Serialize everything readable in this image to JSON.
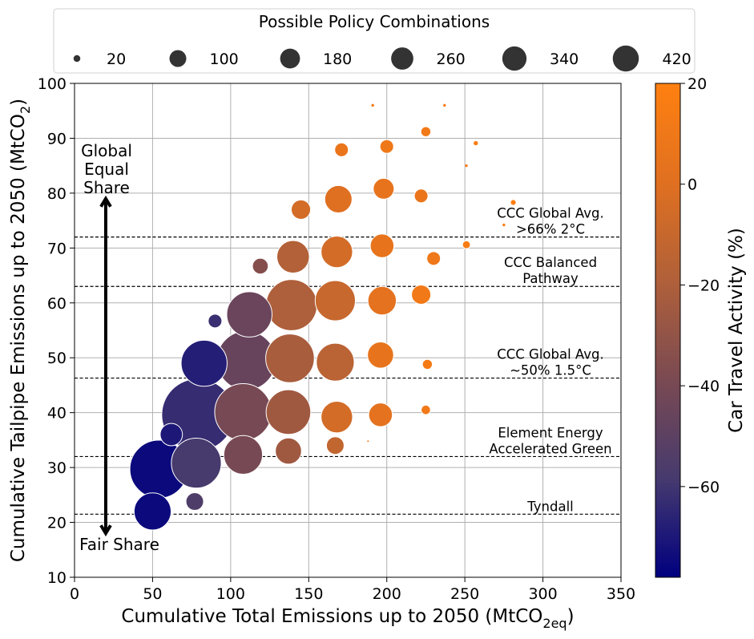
{
  "chart_data": {
    "type": "scatter",
    "xlabel": "Cumulative Total Emissions up to 2050 (MtCO",
    "xlabel_sub": "2eq",
    "xlabel_end": ")",
    "ylabel": "Cumulative Tailpipe Emissions up to 2050 (MtCO",
    "ylabel_sub": "2",
    "ylabel_end": ")",
    "xlim": [
      0,
      350
    ],
    "ylim": [
      10,
      100
    ],
    "xticks": [
      0,
      50,
      100,
      150,
      200,
      250,
      300,
      350
    ],
    "yticks": [
      10,
      20,
      30,
      40,
      50,
      60,
      70,
      80,
      90,
      100
    ],
    "grid": true,
    "size_legend": {
      "title": "Possible Policy Combinations",
      "placement": "top",
      "values": [
        20,
        100,
        180,
        260,
        340,
        420
      ]
    },
    "colorbar": {
      "label": "Car Travel Activity (%)",
      "range": [
        -78,
        20
      ],
      "ticks": [
        20,
        0,
        -20,
        -40,
        -60
      ],
      "tick_labels": [
        "20",
        "0",
        "−20",
        "−40",
        "−60"
      ],
      "colors": [
        "#00007f",
        "#463a6e",
        "#7a4a52",
        "#b0603a",
        "#e07020",
        "#ff8010"
      ]
    },
    "reference_lines": [
      {
        "y": 72,
        "label_lines": [
          "CCC Global Avg.",
          ">66% 2°C"
        ]
      },
      {
        "y": 63,
        "label_lines": [
          "CCC Balanced",
          "Pathway"
        ]
      },
      {
        "y": 46.3,
        "label_lines": [
          "CCC Global Avg.",
          "~50% 1.5°C"
        ]
      },
      {
        "y": 32,
        "label_lines": [
          "Element Energy",
          "Accelerated Green"
        ]
      },
      {
        "y": 21.5,
        "label_lines": [
          "Tyndall"
        ]
      }
    ],
    "arrow": {
      "x": 20,
      "y_from": 18,
      "y_to": 79,
      "top_label_lines": [
        "Global",
        "Equal",
        "Share"
      ],
      "bottom_label": "Fair Share"
    },
    "points": [
      {
        "x": 50,
        "y": 22,
        "size": 110,
        "color": -75
      },
      {
        "x": 54,
        "y": 29.7,
        "size": 270,
        "color": -75
      },
      {
        "x": 62,
        "y": 36,
        "size": 40,
        "color": -70
      },
      {
        "x": 77,
        "y": 23.8,
        "size": 25,
        "color": -55
      },
      {
        "x": 78,
        "y": 30.8,
        "size": 200,
        "color": -58
      },
      {
        "x": 79,
        "y": 39.6,
        "size": 420,
        "color": -63
      },
      {
        "x": 83,
        "y": 49,
        "size": 170,
        "color": -68
      },
      {
        "x": 90,
        "y": 56.7,
        "size": 15,
        "color": -62
      },
      {
        "x": 108,
        "y": 32.3,
        "size": 120,
        "color": -40
      },
      {
        "x": 108,
        "y": 40.1,
        "size": 260,
        "color": -40
      },
      {
        "x": 110,
        "y": 49.5,
        "size": 280,
        "color": -46
      },
      {
        "x": 112,
        "y": 57.9,
        "size": 165,
        "color": -45
      },
      {
        "x": 119,
        "y": 66.7,
        "size": 20,
        "color": -35
      },
      {
        "x": 137,
        "y": 33,
        "size": 55,
        "color": -25
      },
      {
        "x": 137,
        "y": 40.1,
        "size": 160,
        "color": -25
      },
      {
        "x": 138,
        "y": 49.9,
        "size": 190,
        "color": -22
      },
      {
        "x": 139,
        "y": 59.6,
        "size": 210,
        "color": -20
      },
      {
        "x": 140,
        "y": 68.4,
        "size": 85,
        "color": -18
      },
      {
        "x": 145,
        "y": 77,
        "size": 30,
        "color": -5
      },
      {
        "x": 167,
        "y": 34,
        "size": 25,
        "color": -12
      },
      {
        "x": 167,
        "y": 49.2,
        "size": 115,
        "color": -15
      },
      {
        "x": 167,
        "y": 60.4,
        "size": 130,
        "color": -10
      },
      {
        "x": 168,
        "y": 39.2,
        "size": 80,
        "color": -5
      },
      {
        "x": 168,
        "y": 69.3,
        "size": 80,
        "color": -5
      },
      {
        "x": 169,
        "y": 78.9,
        "size": 60,
        "color": 0
      },
      {
        "x": 171,
        "y": 87.9,
        "size": 15,
        "color": 7
      },
      {
        "x": 188,
        "y": 34.8,
        "size": 0.2,
        "color": 10
      },
      {
        "x": 191,
        "y": 96,
        "size": 0.6,
        "color": 12
      },
      {
        "x": 196,
        "y": 39.6,
        "size": 45,
        "color": 3
      },
      {
        "x": 196,
        "y": 50.5,
        "size": 55,
        "color": 5
      },
      {
        "x": 197,
        "y": 60.4,
        "size": 65,
        "color": 3
      },
      {
        "x": 197,
        "y": 70.4,
        "size": 45,
        "color": 5
      },
      {
        "x": 198,
        "y": 80.8,
        "size": 35,
        "color": 5
      },
      {
        "x": 200,
        "y": 88.5,
        "size": 15,
        "color": 10
      },
      {
        "x": 222,
        "y": 61.5,
        "size": 30,
        "color": 12
      },
      {
        "x": 222,
        "y": 79.5,
        "size": 15,
        "color": 7
      },
      {
        "x": 225,
        "y": 91.2,
        "size": 8,
        "color": 12
      },
      {
        "x": 225,
        "y": 40.5,
        "size": 7,
        "color": 12
      },
      {
        "x": 226,
        "y": 48.8,
        "size": 8,
        "color": 14
      },
      {
        "x": 230,
        "y": 68.1,
        "size": 15,
        "color": 10
      },
      {
        "x": 237,
        "y": 96,
        "size": 0.6,
        "color": 14
      },
      {
        "x": 251,
        "y": 85,
        "size": 0.6,
        "color": 16
      },
      {
        "x": 251,
        "y": 70.6,
        "size": 5,
        "color": 15
      },
      {
        "x": 257,
        "y": 89.1,
        "size": 1.5,
        "color": 16
      },
      {
        "x": 275,
        "y": 74.2,
        "size": 0.6,
        "color": 18
      },
      {
        "x": 281,
        "y": 78.3,
        "size": 2,
        "color": 18
      }
    ]
  }
}
